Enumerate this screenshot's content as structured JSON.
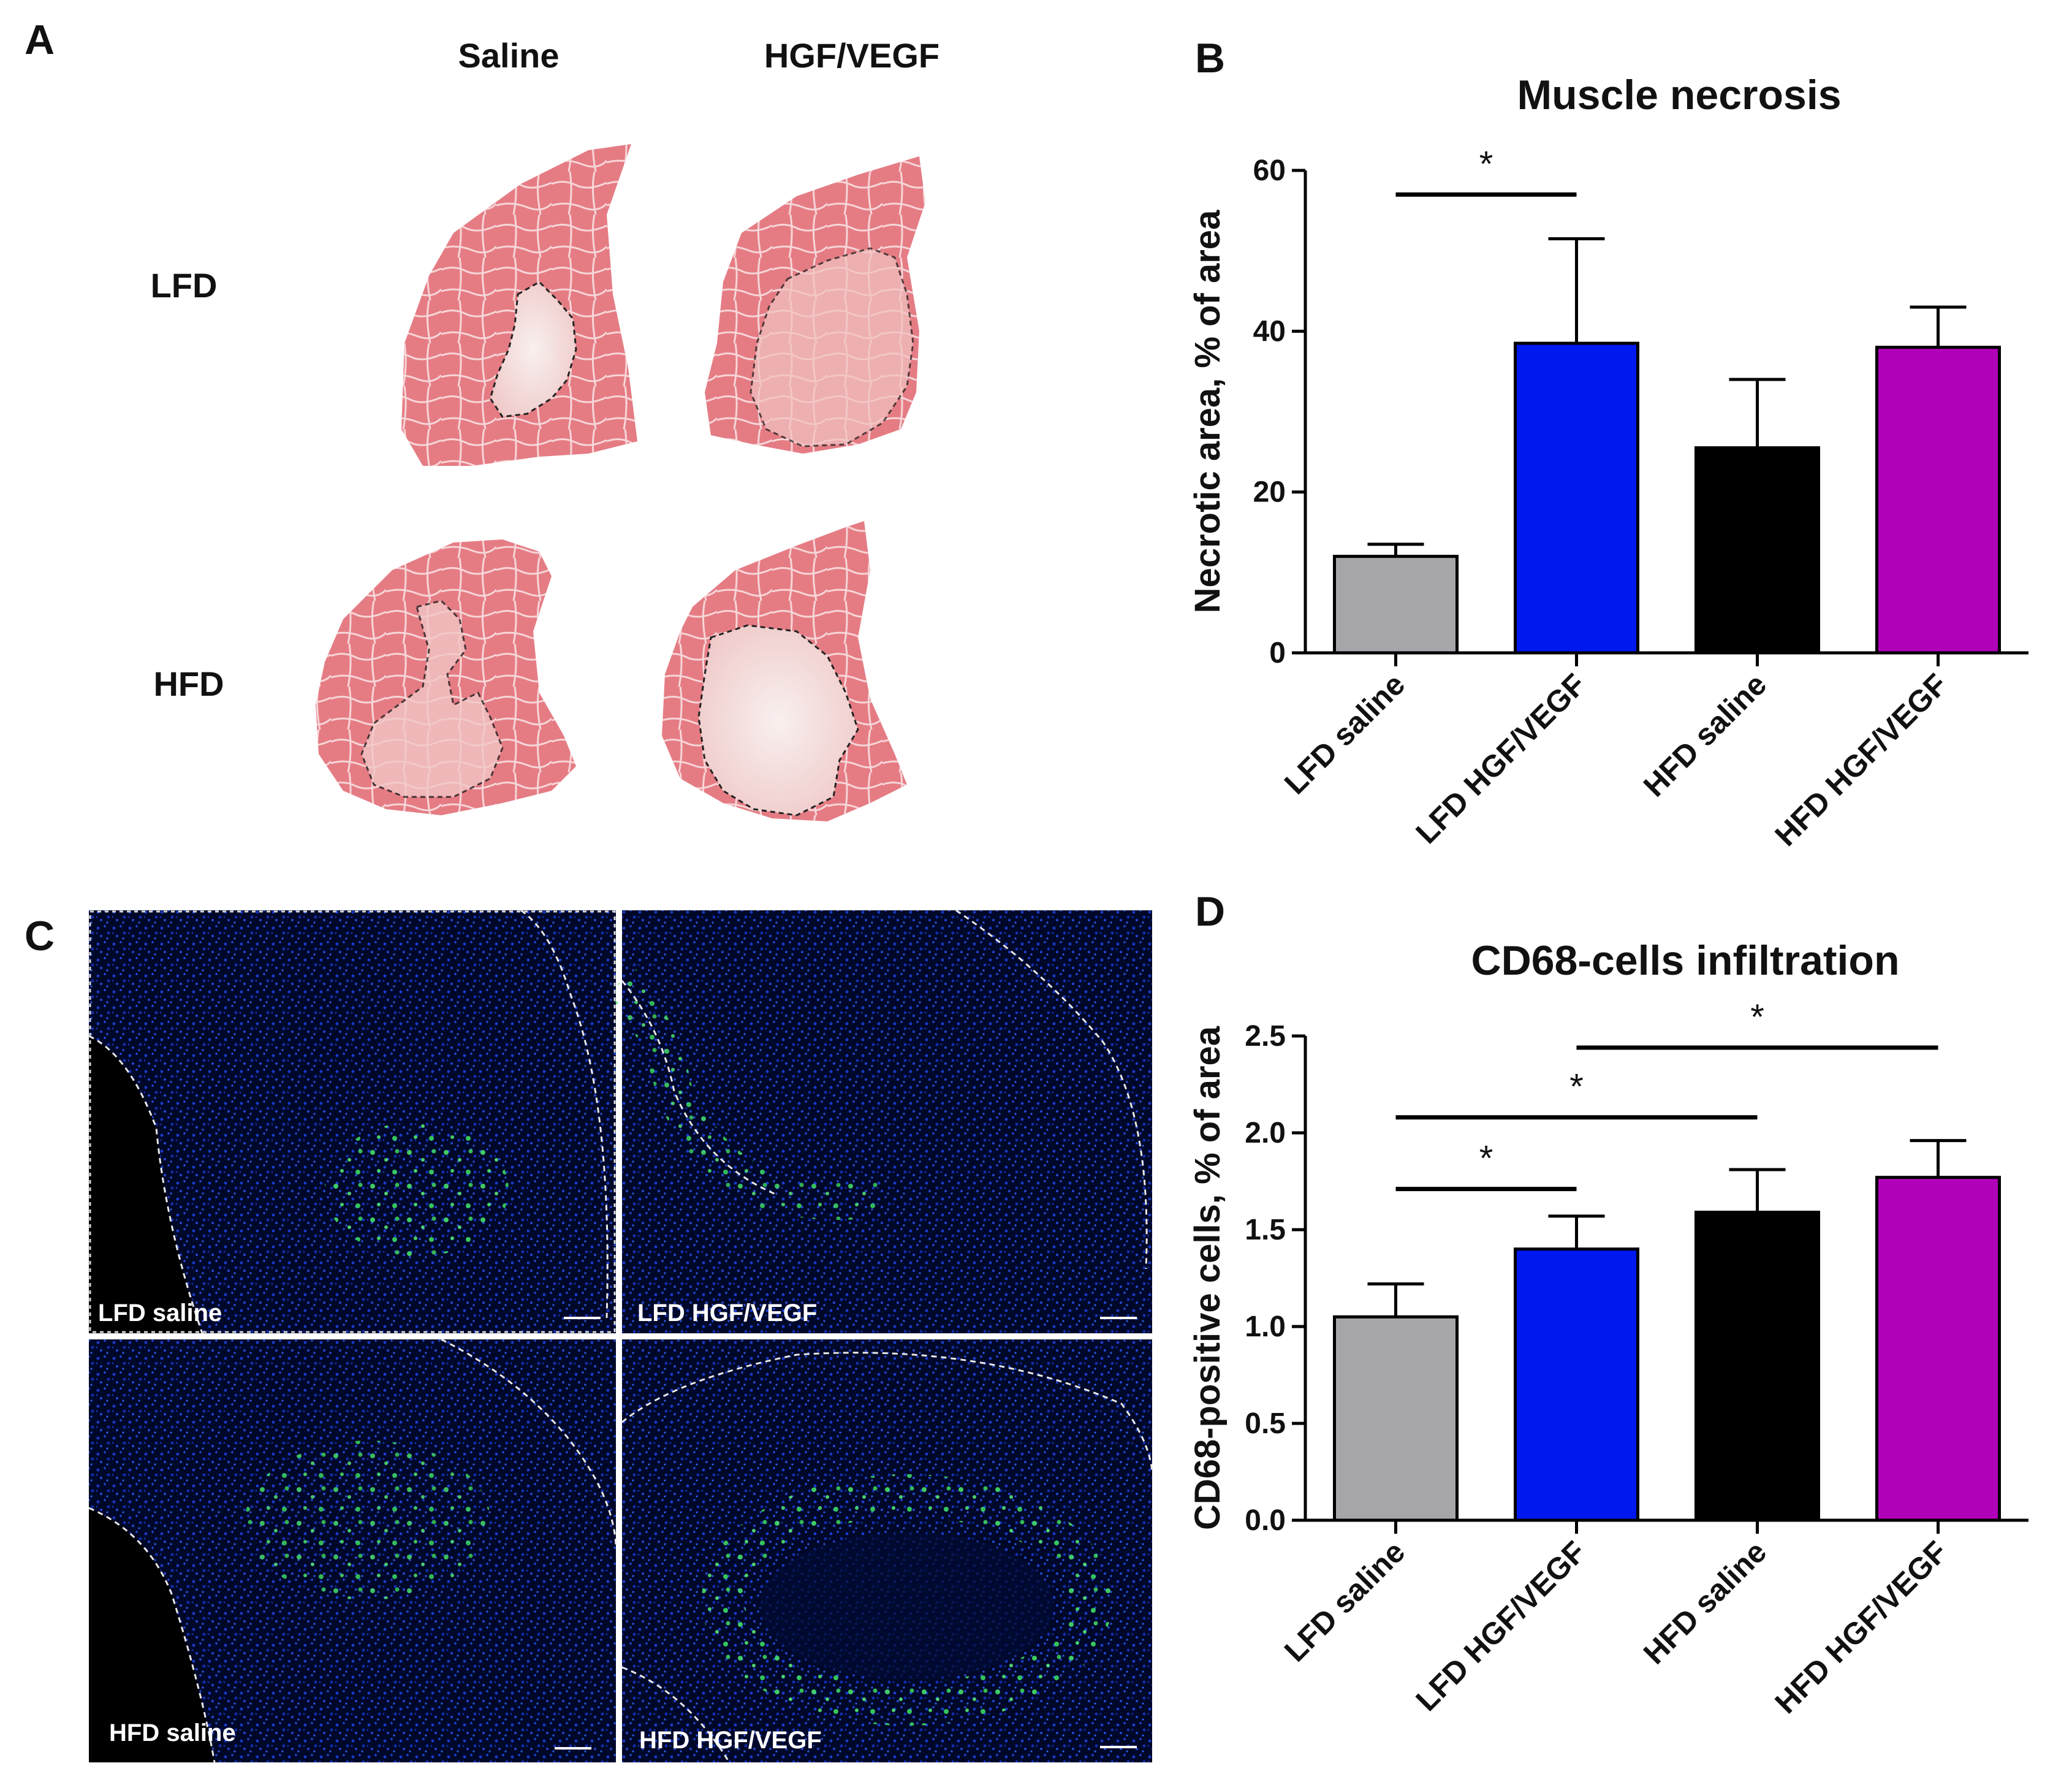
{
  "panel_a": {
    "label": "A",
    "col_headers": [
      "Saline",
      "HGF/VEGF"
    ],
    "row_headers": [
      "LFD",
      "HFD"
    ]
  },
  "panel_b": {
    "label": "B"
  },
  "panel_c": {
    "label": "C",
    "tile_labels": [
      "LFD saline",
      "LFD HGF/VEGF",
      "HFD saline",
      "HFD HGF/VEGF"
    ]
  },
  "panel_d": {
    "label": "D"
  },
  "colors": {
    "gray": "#a6a6aa",
    "blue": "#0018f0",
    "black": "#000000",
    "magenta": "#b000b8",
    "tissue": "#e57c84",
    "fluo_bg": "#00082a",
    "nuclei": "#1a3cd8",
    "cd68": "#49e86a"
  },
  "chart_data": [
    {
      "id": "necrosis",
      "type": "bar",
      "title": "Muscle necrosis",
      "ylabel": "Necrotic area, % of area",
      "xlabel": "",
      "categories": [
        "LFD saline",
        "LFD HGF/VEGF",
        "HFD saline",
        "HFD HGF/VEGF"
      ],
      "values": [
        12,
        38.5,
        25.5,
        38
      ],
      "errors": [
        1.5,
        13,
        8.5,
        5
      ],
      "colors": [
        "#a6a6aa",
        "#0018f0",
        "#000000",
        "#b000b8"
      ],
      "ylim": [
        0,
        60
      ],
      "yticks": [
        0,
        20,
        40,
        60
      ],
      "ytick_labels": [
        "0",
        "20",
        "40",
        "60"
      ],
      "significance": [
        {
          "from": 0,
          "to": 1,
          "label": "*",
          "y": 57
        }
      ]
    },
    {
      "id": "cd68",
      "type": "bar",
      "title": "CD68-cells infiltration",
      "ylabel": "CD68-positive cells, % of area",
      "xlabel": "",
      "categories": [
        "LFD saline",
        "LFD HGF/VEGF",
        "HFD saline",
        "HFD HGF/VEGF"
      ],
      "values": [
        1.05,
        1.4,
        1.59,
        1.77
      ],
      "errors": [
        0.17,
        0.17,
        0.22,
        0.19
      ],
      "colors": [
        "#a6a6aa",
        "#0018f0",
        "#000000",
        "#b000b8"
      ],
      "ylim": [
        0,
        2.5
      ],
      "yticks": [
        0,
        0.5,
        1.0,
        1.5,
        2.0,
        2.5
      ],
      "ytick_labels": [
        "0.0",
        "0.5",
        "1.0",
        "1.5",
        "2.0",
        "2.5"
      ],
      "significance": [
        {
          "from": 0,
          "to": 1,
          "label": "*",
          "y": 1.71
        },
        {
          "from": 0,
          "to": 2,
          "label": "*",
          "y": 2.08
        },
        {
          "from": 1,
          "to": 3,
          "label": "*",
          "y": 2.44
        }
      ]
    }
  ]
}
